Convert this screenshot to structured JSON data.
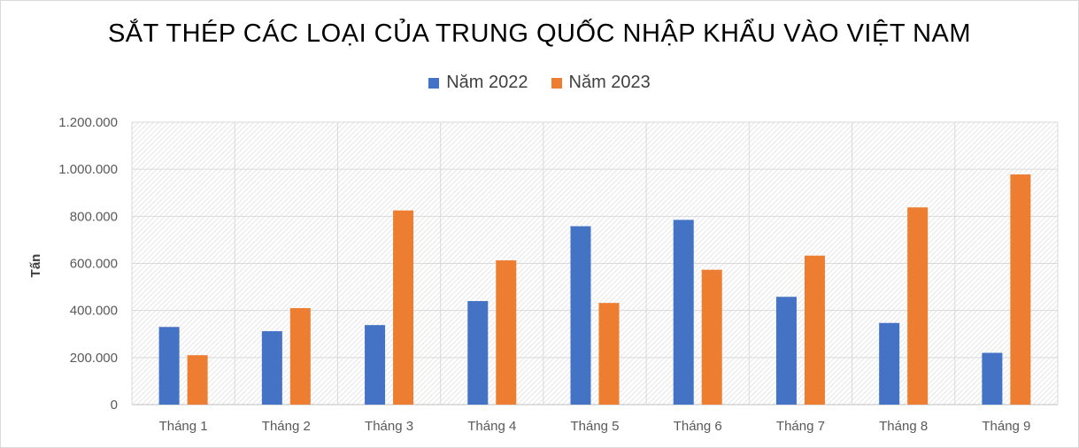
{
  "chart_data": {
    "type": "bar",
    "title": "SẮT THÉP CÁC LOẠI CỦA TRUNG QUỐC NHẬP KHẨU VÀO VIỆT NAM",
    "ylabel": "Tấn",
    "xlabel": "",
    "categories": [
      "Tháng 1",
      "Tháng 2",
      "Tháng 3",
      "Tháng 4",
      "Tháng 5",
      "Tháng 6",
      "Tháng 7",
      "Tháng 8",
      "Tháng 9"
    ],
    "series": [
      {
        "name": "Năm 2022",
        "color": "#4472c4",
        "values": [
          330000,
          312000,
          338000,
          440000,
          758000,
          785000,
          458000,
          347000,
          220000
        ]
      },
      {
        "name": "Năm 2023",
        "color": "#ed7d31",
        "values": [
          210000,
          410000,
          825000,
          613000,
          432000,
          573000,
          633000,
          838000,
          978000
        ]
      }
    ],
    "ylim": [
      0,
      1200000
    ],
    "yticks": [
      0,
      200000,
      400000,
      600000,
      800000,
      1000000,
      1200000
    ],
    "ytick_labels": [
      "0",
      "200.000",
      "400.000",
      "600.000",
      "800.000",
      "1.000.000",
      "1.200.000"
    ],
    "legend_position": "top-center",
    "grid": true
  }
}
